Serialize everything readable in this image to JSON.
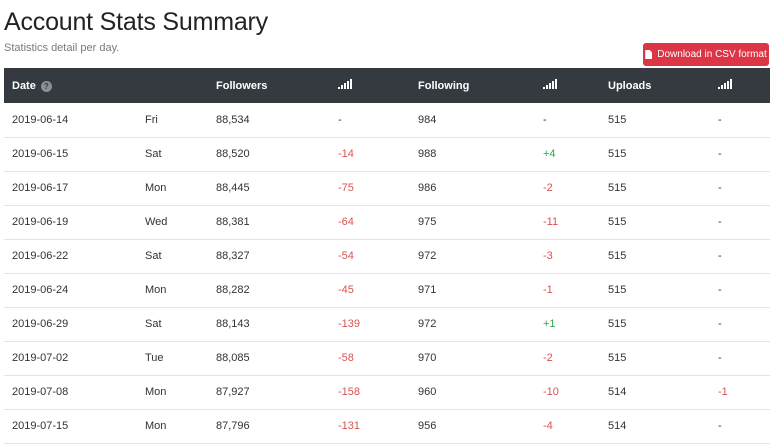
{
  "page": {
    "title": "Account Stats Summary",
    "subtitle": "Statistics detail per day.",
    "csv_button_label": "Download in CSV format"
  },
  "colors": {
    "header_bg": "#343a40",
    "negative": "#d9534f",
    "positive": "#28a745",
    "button": "#dc3545"
  },
  "table": {
    "headers": {
      "date": "Date",
      "followers": "Followers",
      "following": "Following",
      "uploads": "Uploads"
    },
    "icons": {
      "date_help": "question-circle-icon",
      "change": "signal-bars-icon"
    },
    "rows": [
      {
        "date": "2019-06-14",
        "day": "Fri",
        "followers": "88,534",
        "followers_change": "-",
        "following": "984",
        "following_change": "-",
        "uploads": "515",
        "uploads_change": "-"
      },
      {
        "date": "2019-06-15",
        "day": "Sat",
        "followers": "88,520",
        "followers_change": "-14",
        "following": "988",
        "following_change": "+4",
        "uploads": "515",
        "uploads_change": "-"
      },
      {
        "date": "2019-06-17",
        "day": "Mon",
        "followers": "88,445",
        "followers_change": "-75",
        "following": "986",
        "following_change": "-2",
        "uploads": "515",
        "uploads_change": "-"
      },
      {
        "date": "2019-06-19",
        "day": "Wed",
        "followers": "88,381",
        "followers_change": "-64",
        "following": "975",
        "following_change": "-11",
        "uploads": "515",
        "uploads_change": "-"
      },
      {
        "date": "2019-06-22",
        "day": "Sat",
        "followers": "88,327",
        "followers_change": "-54",
        "following": "972",
        "following_change": "-3",
        "uploads": "515",
        "uploads_change": "-"
      },
      {
        "date": "2019-06-24",
        "day": "Mon",
        "followers": "88,282",
        "followers_change": "-45",
        "following": "971",
        "following_change": "-1",
        "uploads": "515",
        "uploads_change": "-"
      },
      {
        "date": "2019-06-29",
        "day": "Sat",
        "followers": "88,143",
        "followers_change": "-139",
        "following": "972",
        "following_change": "+1",
        "uploads": "515",
        "uploads_change": "-"
      },
      {
        "date": "2019-07-02",
        "day": "Tue",
        "followers": "88,085",
        "followers_change": "-58",
        "following": "970",
        "following_change": "-2",
        "uploads": "515",
        "uploads_change": "-"
      },
      {
        "date": "2019-07-08",
        "day": "Mon",
        "followers": "87,927",
        "followers_change": "-158",
        "following": "960",
        "following_change": "-10",
        "uploads": "514",
        "uploads_change": "-1"
      },
      {
        "date": "2019-07-15",
        "day": "Mon",
        "followers": "87,796",
        "followers_change": "-131",
        "following": "956",
        "following_change": "-4",
        "uploads": "514",
        "uploads_change": "-"
      }
    ]
  }
}
